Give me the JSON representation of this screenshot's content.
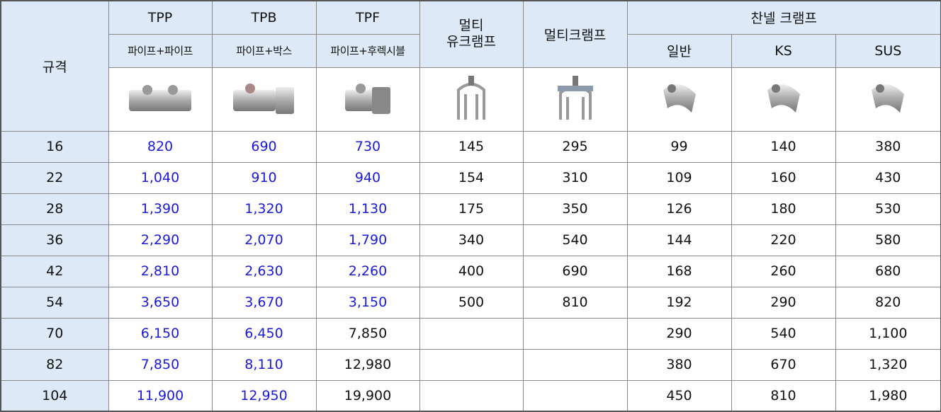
{
  "table": {
    "header": {
      "spec": "규격",
      "groups": [
        "TPP",
        "TPB",
        "TPF",
        "멀티\n유크램프",
        "멀티크램프",
        "찬넬 크램프"
      ],
      "subheaders": [
        "파이프+파이프",
        "파이프+박스",
        "파이프+후렉시블",
        "일반",
        "KS",
        "SUS"
      ]
    },
    "rows": [
      [
        "16",
        "820",
        "690",
        "730",
        "145",
        "295",
        "99",
        "140",
        "380"
      ],
      [
        "22",
        "1,040",
        "910",
        "940",
        "154",
        "310",
        "109",
        "160",
        "430"
      ],
      [
        "28",
        "1,390",
        "1,320",
        "1,130",
        "175",
        "350",
        "126",
        "180",
        "530"
      ],
      [
        "36",
        "2,290",
        "2,070",
        "1,790",
        "340",
        "540",
        "144",
        "220",
        "580"
      ],
      [
        "42",
        "2,810",
        "2,630",
        "2,260",
        "400",
        "690",
        "168",
        "260",
        "680"
      ],
      [
        "54",
        "3,650",
        "3,670",
        "3,150",
        "500",
        "810",
        "192",
        "290",
        "820"
      ],
      [
        "70",
        "6,150",
        "6,450",
        "7,850",
        null,
        null,
        "290",
        "540",
        "1,100"
      ],
      [
        "82",
        "7,850",
        "8,110",
        "12,980",
        null,
        null,
        "380",
        "670",
        "1,320"
      ],
      [
        "104",
        "11,900",
        "12,950",
        "19,900",
        null,
        null,
        "450",
        "810",
        "1,980"
      ]
    ]
  }
}
